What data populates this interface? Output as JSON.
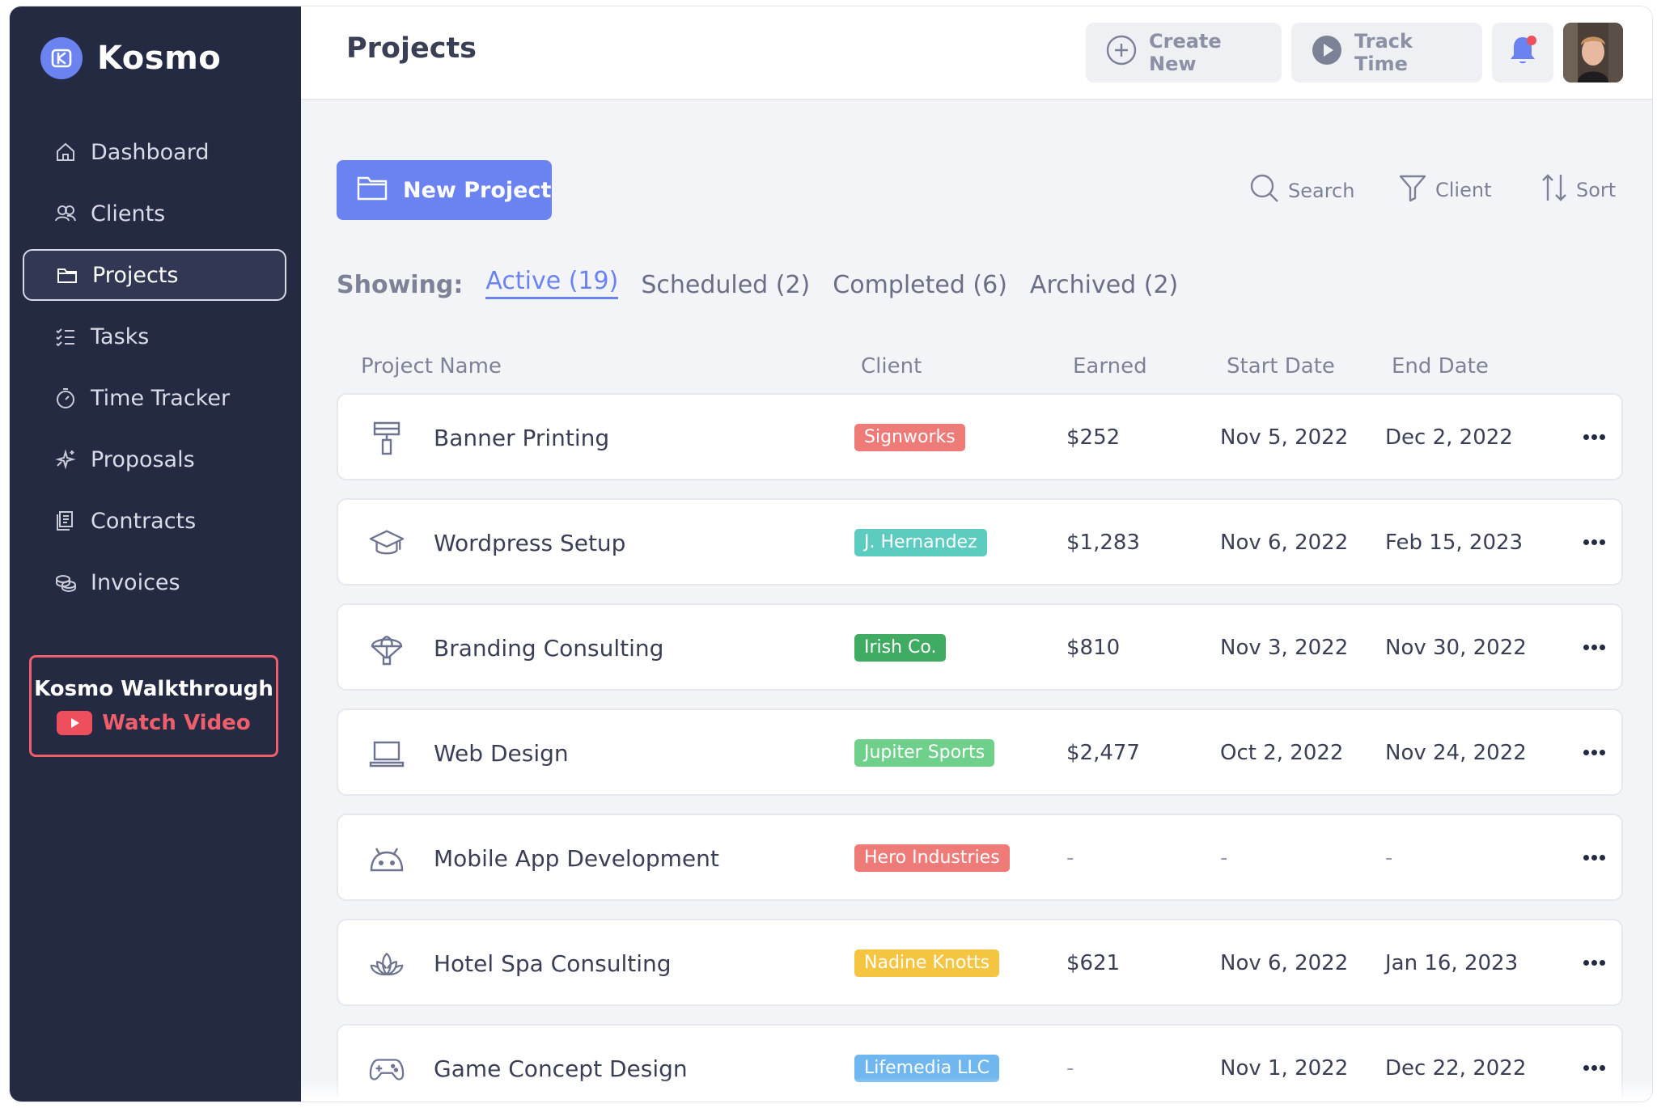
{
  "app": {
    "name": "Kosmo"
  },
  "colors": {
    "accent": "#6b83f0",
    "sidebar_bg": "#252a43",
    "alert": "#ef5f6b"
  },
  "sidebar": {
    "items": [
      {
        "label": "Dashboard",
        "icon": "home-icon"
      },
      {
        "label": "Clients",
        "icon": "users-icon"
      },
      {
        "label": "Projects",
        "icon": "folder-icon",
        "active": true
      },
      {
        "label": "Tasks",
        "icon": "checklist-icon"
      },
      {
        "label": "Time Tracker",
        "icon": "stopwatch-icon"
      },
      {
        "label": "Proposals",
        "icon": "sparkle-icon"
      },
      {
        "label": "Contracts",
        "icon": "document-icon"
      },
      {
        "label": "Invoices",
        "icon": "coins-icon"
      }
    ],
    "walkthrough": {
      "title": "Kosmo Walkthrough",
      "video_label": "Watch Video"
    }
  },
  "header": {
    "title": "Projects",
    "create_new": "Create New",
    "track_time": "Track Time"
  },
  "toolbar": {
    "new_project": "New Project",
    "search": "Search",
    "client": "Client",
    "sort": "Sort"
  },
  "filters": {
    "label": "Showing:",
    "tabs": [
      {
        "label": "Active (19)",
        "active": true
      },
      {
        "label": "Scheduled (2)"
      },
      {
        "label": "Completed (6)"
      },
      {
        "label": "Archived (2)"
      }
    ]
  },
  "table": {
    "columns": [
      "Project Name",
      "Client",
      "Earned",
      "Start Date",
      "End Date"
    ],
    "rows": [
      {
        "icon": "paint-roller-icon",
        "name": "Banner Printing",
        "client": "Signworks",
        "client_color": "#ef7b78",
        "earned": "$252",
        "start": "Nov 5, 2022",
        "end": "Dec 2, 2022"
      },
      {
        "icon": "graduation-cap-icon",
        "name": "Wordpress Setup",
        "client": "J. Hernandez",
        "client_color": "#5ccbc0",
        "earned": "$1,283",
        "start": "Nov 6, 2022",
        "end": "Feb 15, 2023"
      },
      {
        "icon": "parachute-icon",
        "name": "Branding Consulting",
        "client": "Irish Co.",
        "client_color": "#3fab63",
        "earned": "$810",
        "start": "Nov 3, 2022",
        "end": "Nov 30, 2022"
      },
      {
        "icon": "laptop-icon",
        "name": "Web Design",
        "client": "Jupiter Sports",
        "client_color": "#6fd08c",
        "earned": "$2,477",
        "start": "Oct 2, 2022",
        "end": "Nov 24, 2022"
      },
      {
        "icon": "android-icon",
        "name": "Mobile App Development",
        "client": "Hero Industries",
        "client_color": "#ef7b78",
        "earned": "-",
        "start": "-",
        "end": "-"
      },
      {
        "icon": "lotus-icon",
        "name": "Hotel Spa Consulting",
        "client": "Nadine Knotts",
        "client_color": "#f5c542",
        "earned": "$621",
        "start": "Nov 6, 2022",
        "end": "Jan 16, 2023"
      },
      {
        "icon": "gamepad-icon",
        "name": "Game Concept Design",
        "client": "Lifemedia LLC",
        "client_color": "#6fb7ee",
        "earned": "-",
        "start": "Nov 1, 2022",
        "end": "Dec 22, 2022"
      }
    ]
  }
}
